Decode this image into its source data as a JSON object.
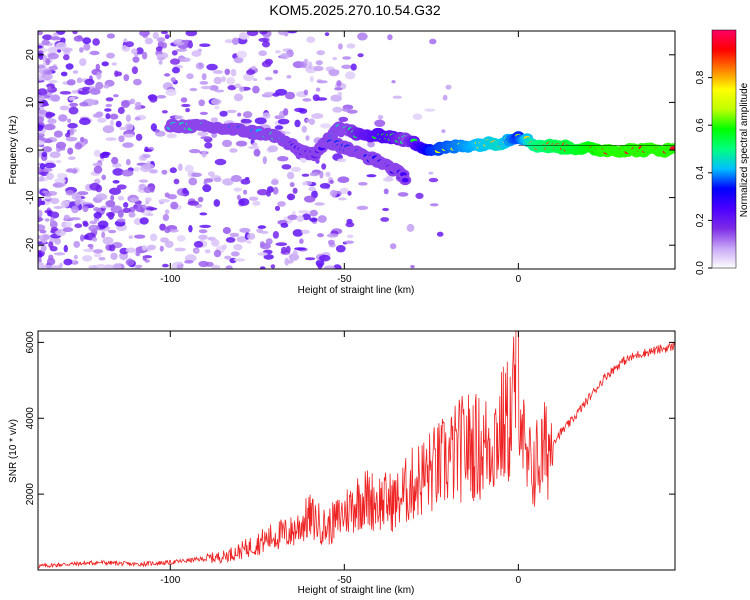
{
  "title": "KOM5.2025.270.10.54.G32",
  "chart_data": [
    {
      "type": "heatmap",
      "name": "spectrogram",
      "xlabel": "Height of straight line (km)",
      "ylabel": "Frequency (Hz)",
      "xlim": [
        -138,
        45
      ],
      "ylim": [
        -25,
        25
      ],
      "xticks": [
        -100,
        -50,
        0
      ],
      "yticks": [
        -20,
        -10,
        0,
        10,
        20
      ],
      "colorbar": {
        "label": "Normalized spectral amplitude",
        "range": [
          0,
          1
        ],
        "ticks": [
          "0.0",
          "0.2",
          "0.4",
          "0.6",
          "0.8"
        ],
        "colors": [
          "#ffffff",
          "#c7a6f5",
          "#7d2be8",
          "#4a00ff",
          "#0000ff",
          "#00bfff",
          "#00ff7f",
          "#00ff00",
          "#bfff00",
          "#ffff00",
          "#ff8000",
          "#ff0000",
          "#ff0066"
        ]
      },
      "ridge": {
        "name": "dominant frequency ridge",
        "points": [
          {
            "x": -100,
            "y": 5,
            "a": 0.45
          },
          {
            "x": -93,
            "y": 5,
            "a": 0.5
          },
          {
            "x": -85,
            "y": 4.5,
            "a": 0.4
          },
          {
            "x": -78,
            "y": 4,
            "a": 0.35
          },
          {
            "x": -70,
            "y": 3,
            "a": 0.5
          },
          {
            "x": -63,
            "y": 0,
            "a": 0.25
          },
          {
            "x": -58,
            "y": -1,
            "a": 0.2
          },
          {
            "x": -52,
            "y": 5,
            "a": 0.45
          },
          {
            "x": -45,
            "y": 3,
            "a": 0.55
          },
          {
            "x": -38,
            "y": 3,
            "a": 0.6
          },
          {
            "x": -32,
            "y": 2,
            "a": 0.5
          },
          {
            "x": -25,
            "y": 0,
            "a": 0.7
          },
          {
            "x": -15,
            "y": 1,
            "a": 0.75
          },
          {
            "x": -5,
            "y": 1.5,
            "a": 0.8
          },
          {
            "x": 0,
            "y": 3,
            "a": 0.7
          },
          {
            "x": 5,
            "y": 1,
            "a": 0.85
          },
          {
            "x": 15,
            "y": 0.5,
            "a": 0.9
          },
          {
            "x": 25,
            "y": 0,
            "a": 0.95
          },
          {
            "x": 45,
            "y": 0,
            "a": 0.95
          }
        ]
      },
      "branch": {
        "name": "secondary descending branch",
        "points": [
          {
            "x": -55,
            "y": 2,
            "a": 0.35
          },
          {
            "x": -45,
            "y": -1,
            "a": 0.35
          },
          {
            "x": -38,
            "y": -3,
            "a": 0.3
          },
          {
            "x": -32,
            "y": -6,
            "a": 0.25
          }
        ]
      }
    },
    {
      "type": "line",
      "name": "snr",
      "xlabel": "Height of straight line (km)",
      "ylabel": "SNR (10 * v/v)",
      "xlim": [
        -138,
        45
      ],
      "ylim": [
        0,
        6300
      ],
      "xticks": [
        -100,
        -50,
        0
      ],
      "yticks": [
        2000,
        4000,
        6000
      ],
      "line_color": "#ee2222",
      "series": [
        {
          "name": "SNR",
          "x": [
            -138,
            -130,
            -120,
            -110,
            -100,
            -95,
            -90,
            -85,
            -80,
            -75,
            -70,
            -65,
            -60,
            -55,
            -50,
            -45,
            -40,
            -35,
            -30,
            -25,
            -20,
            -15,
            -10,
            -5,
            -2,
            0,
            2,
            5,
            10,
            15,
            20,
            25,
            30,
            35,
            40,
            45
          ],
          "values": [
            100,
            150,
            200,
            150,
            200,
            250,
            300,
            350,
            500,
            700,
            900,
            1000,
            1400,
            1100,
            1500,
            1900,
            1800,
            1800,
            2300,
            2600,
            2900,
            3300,
            3200,
            3700,
            4000,
            5800,
            2600,
            2800,
            3400,
            3900,
            4500,
            5100,
            5500,
            5700,
            5800,
            5900
          ]
        }
      ]
    }
  ]
}
